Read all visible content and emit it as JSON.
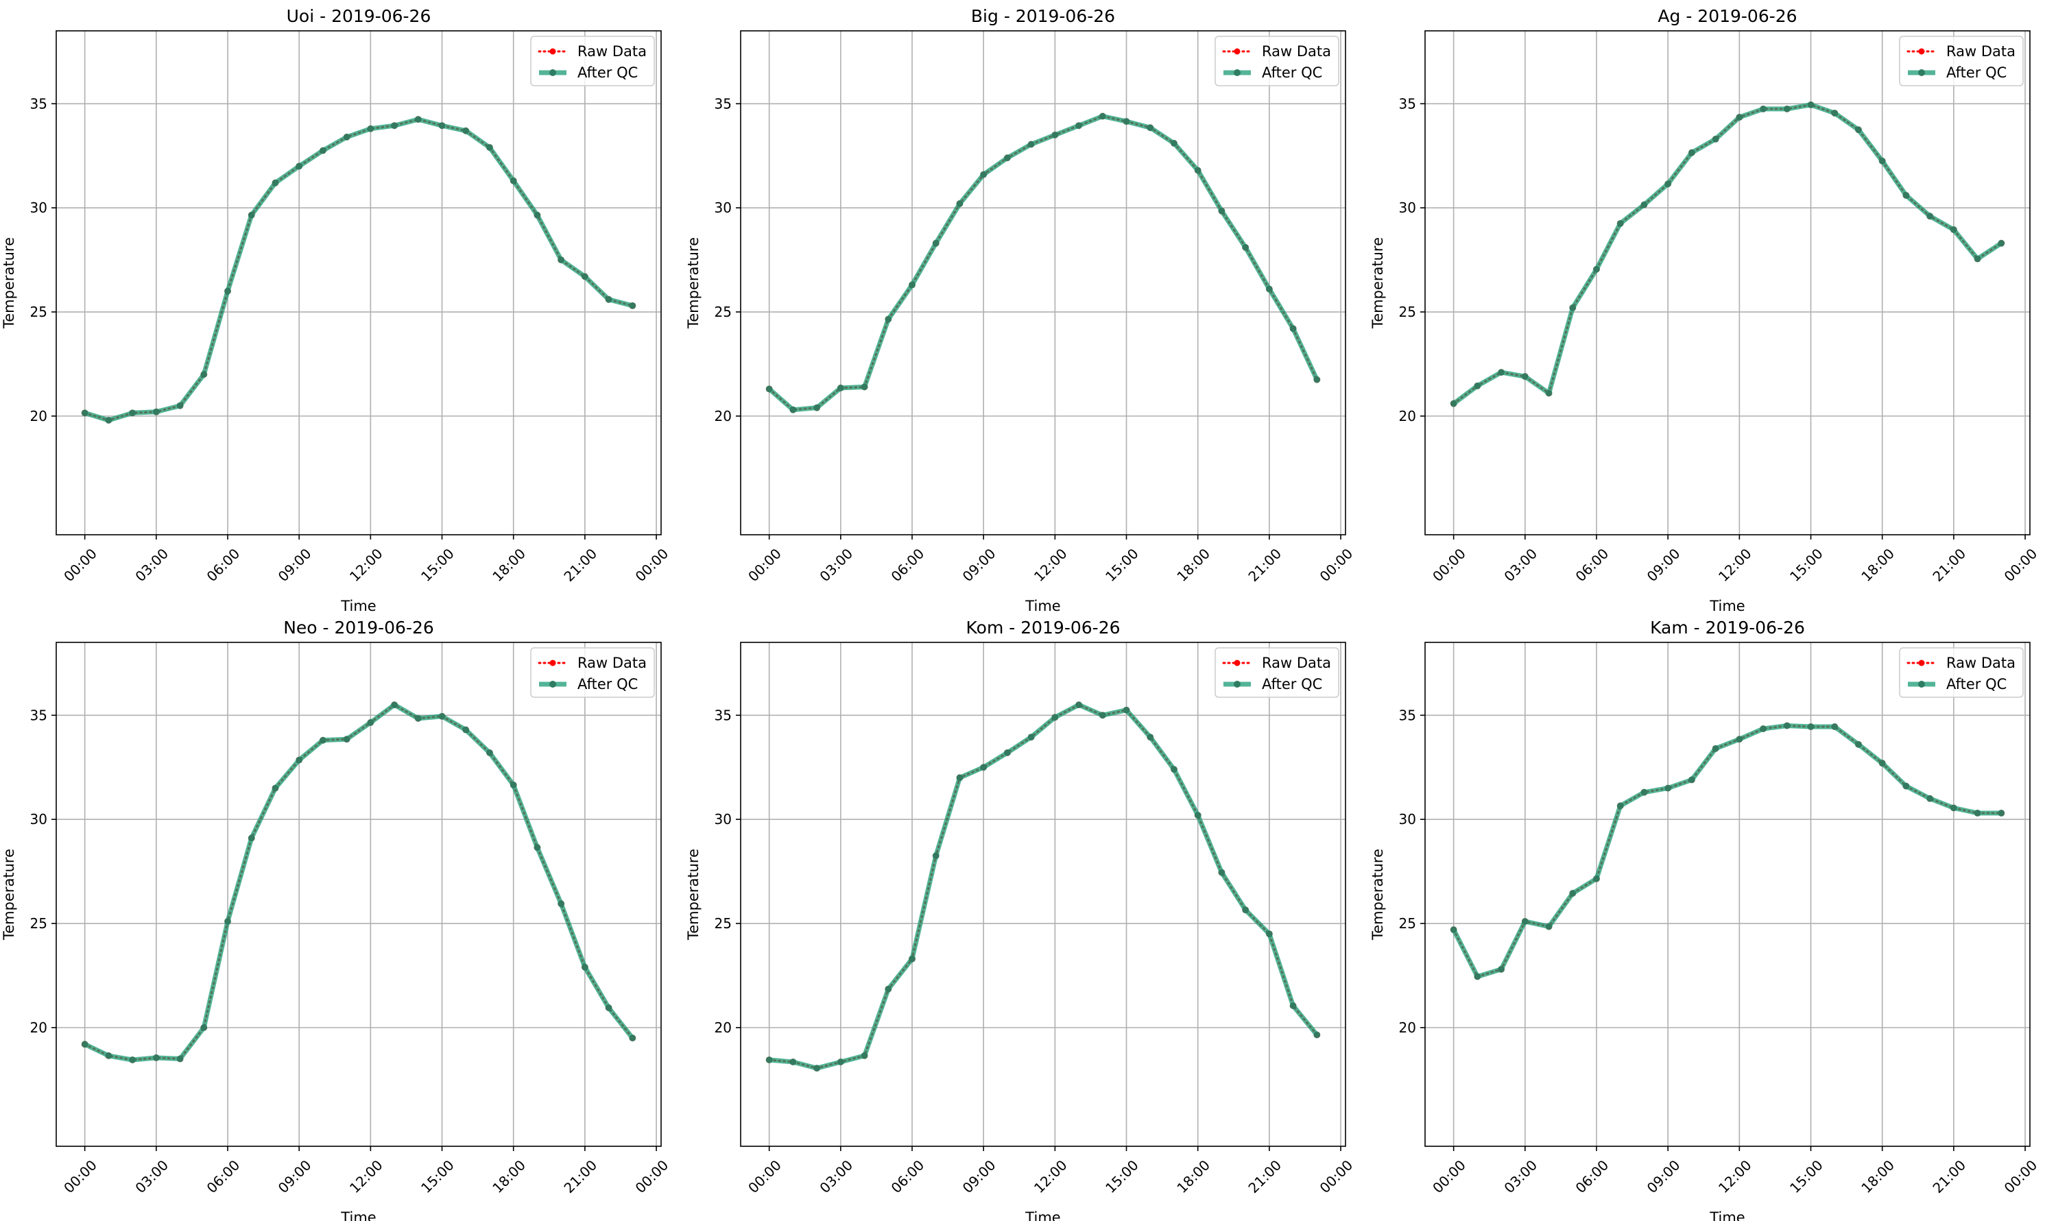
{
  "chart_data": [
    {
      "type": "line",
      "title": "Uoi - 2019-06-26",
      "xlabel": "Time",
      "ylabel": "Temperature",
      "x": [
        "00:00",
        "01:00",
        "02:00",
        "03:00",
        "04:00",
        "05:00",
        "06:00",
        "07:00",
        "08:00",
        "09:00",
        "10:00",
        "11:00",
        "12:00",
        "13:00",
        "14:00",
        "15:00",
        "16:00",
        "17:00",
        "18:00",
        "19:00",
        "20:00",
        "21:00",
        "22:00",
        "23:00"
      ],
      "xticks": [
        "00:00",
        "03:00",
        "06:00",
        "09:00",
        "12:00",
        "15:00",
        "18:00",
        "21:00",
        "00:00"
      ],
      "yticks": [
        20,
        25,
        30,
        35
      ],
      "ylim": [
        14.3,
        38.5
      ],
      "xlim_hours": [
        -1.2,
        24.2
      ],
      "grid": true,
      "legend_position": "top-right",
      "series": [
        {
          "name": "Raw Data",
          "color": "#ff0000",
          "style": "dotted-markers",
          "values": [
            20.15,
            19.8,
            20.15,
            20.2,
            20.5,
            22.0,
            26.0,
            29.65,
            31.2,
            32.0,
            32.75,
            33.4,
            33.8,
            33.95,
            34.25,
            33.95,
            33.7,
            32.9,
            31.3,
            29.65,
            27.5,
            26.7,
            25.6,
            25.3
          ]
        },
        {
          "name": "After QC",
          "color": "#1a9b74",
          "style": "solid-markers",
          "values": [
            20.15,
            19.8,
            20.15,
            20.2,
            20.5,
            22.0,
            26.0,
            29.65,
            31.2,
            32.0,
            32.75,
            33.4,
            33.8,
            33.95,
            34.25,
            33.95,
            33.7,
            32.9,
            31.3,
            29.65,
            27.5,
            26.7,
            25.6,
            25.3
          ]
        }
      ]
    },
    {
      "type": "line",
      "title": "Big - 2019-06-26",
      "xlabel": "Time",
      "ylabel": "Temperature",
      "x": [
        "00:00",
        "01:00",
        "02:00",
        "03:00",
        "04:00",
        "05:00",
        "06:00",
        "07:00",
        "08:00",
        "09:00",
        "10:00",
        "11:00",
        "12:00",
        "13:00",
        "14:00",
        "15:00",
        "16:00",
        "17:00",
        "18:00",
        "19:00",
        "20:00",
        "21:00",
        "22:00",
        "23:00"
      ],
      "xticks": [
        "00:00",
        "03:00",
        "06:00",
        "09:00",
        "12:00",
        "15:00",
        "18:00",
        "21:00",
        "00:00"
      ],
      "yticks": [
        20,
        25,
        30,
        35
      ],
      "ylim": [
        14.3,
        38.5
      ],
      "xlim_hours": [
        -1.2,
        24.2
      ],
      "grid": true,
      "legend_position": "top-right",
      "series": [
        {
          "name": "Raw Data",
          "color": "#ff0000",
          "style": "dotted-markers",
          "values": [
            21.3,
            20.3,
            20.4,
            21.35,
            21.4,
            24.65,
            26.3,
            28.3,
            30.2,
            31.6,
            32.4,
            33.05,
            33.5,
            33.95,
            34.4,
            34.15,
            33.85,
            33.1,
            31.8,
            29.85,
            28.1,
            26.1,
            24.2,
            21.75
          ]
        },
        {
          "name": "After QC",
          "color": "#1a9b74",
          "style": "solid-markers",
          "values": [
            21.3,
            20.3,
            20.4,
            21.35,
            21.4,
            24.65,
            26.3,
            28.3,
            30.2,
            31.6,
            32.4,
            33.05,
            33.5,
            33.95,
            34.4,
            34.15,
            33.85,
            33.1,
            31.8,
            29.85,
            28.1,
            26.1,
            24.2,
            21.75
          ]
        }
      ]
    },
    {
      "type": "line",
      "title": "Ag - 2019-06-26",
      "xlabel": "Time",
      "ylabel": "Temperature",
      "x": [
        "00:00",
        "01:00",
        "02:00",
        "03:00",
        "04:00",
        "05:00",
        "06:00",
        "07:00",
        "08:00",
        "09:00",
        "10:00",
        "11:00",
        "12:00",
        "13:00",
        "14:00",
        "15:00",
        "16:00",
        "17:00",
        "18:00",
        "19:00",
        "20:00",
        "21:00",
        "22:00",
        "23:00"
      ],
      "xticks": [
        "00:00",
        "03:00",
        "06:00",
        "09:00",
        "12:00",
        "15:00",
        "18:00",
        "21:00",
        "00:00"
      ],
      "yticks": [
        20,
        25,
        30,
        35
      ],
      "ylim": [
        14.3,
        38.5
      ],
      "xlim_hours": [
        -1.2,
        24.2
      ],
      "grid": true,
      "legend_position": "top-right",
      "series": [
        {
          "name": "Raw Data",
          "color": "#ff0000",
          "style": "dotted-markers",
          "values": [
            20.6,
            21.45,
            22.1,
            21.9,
            21.1,
            25.2,
            27.05,
            29.25,
            30.15,
            31.15,
            32.65,
            33.3,
            34.35,
            34.75,
            34.75,
            34.95,
            34.55,
            33.75,
            32.25,
            30.6,
            29.6,
            28.95,
            27.55,
            28.3
          ]
        },
        {
          "name": "After QC",
          "color": "#1a9b74",
          "style": "solid-markers",
          "values": [
            20.6,
            21.45,
            22.1,
            21.9,
            21.1,
            25.2,
            27.05,
            29.25,
            30.15,
            31.15,
            32.65,
            33.3,
            34.35,
            34.75,
            34.75,
            34.95,
            34.55,
            33.75,
            32.25,
            30.6,
            29.6,
            28.95,
            27.55,
            28.3
          ]
        }
      ]
    },
    {
      "type": "line",
      "title": "Neo - 2019-06-26",
      "xlabel": "Time",
      "ylabel": "Temperature",
      "x": [
        "00:00",
        "01:00",
        "02:00",
        "03:00",
        "04:00",
        "05:00",
        "06:00",
        "07:00",
        "08:00",
        "09:00",
        "10:00",
        "11:00",
        "12:00",
        "13:00",
        "14:00",
        "15:00",
        "16:00",
        "17:00",
        "18:00",
        "19:00",
        "20:00",
        "21:00",
        "22:00",
        "23:00"
      ],
      "xticks": [
        "00:00",
        "03:00",
        "06:00",
        "09:00",
        "12:00",
        "15:00",
        "18:00",
        "21:00",
        "00:00"
      ],
      "yticks": [
        20,
        25,
        30,
        35
      ],
      "ylim": [
        14.3,
        38.5
      ],
      "xlim_hours": [
        -1.2,
        24.2
      ],
      "grid": true,
      "legend_position": "top-right",
      "series": [
        {
          "name": "Raw Data",
          "color": "#ff0000",
          "style": "dotted-markers",
          "values": [
            19.2,
            18.65,
            18.45,
            18.55,
            18.5,
            20.0,
            25.1,
            29.1,
            31.5,
            32.85,
            33.8,
            33.85,
            34.65,
            35.5,
            34.85,
            34.95,
            34.3,
            33.2,
            31.65,
            28.65,
            25.95,
            22.9,
            20.95,
            19.5
          ]
        },
        {
          "name": "After QC",
          "color": "#1a9b74",
          "style": "solid-markers",
          "values": [
            19.2,
            18.65,
            18.45,
            18.55,
            18.5,
            20.0,
            25.1,
            29.1,
            31.5,
            32.85,
            33.8,
            33.85,
            34.65,
            35.5,
            34.85,
            34.95,
            34.3,
            33.2,
            31.65,
            28.65,
            25.95,
            22.9,
            20.95,
            19.5
          ]
        }
      ]
    },
    {
      "type": "line",
      "title": "Kom - 2019-06-26",
      "xlabel": "Time",
      "ylabel": "Temperature",
      "x": [
        "00:00",
        "01:00",
        "02:00",
        "03:00",
        "04:00",
        "05:00",
        "06:00",
        "07:00",
        "08:00",
        "09:00",
        "10:00",
        "11:00",
        "12:00",
        "13:00",
        "14:00",
        "15:00",
        "16:00",
        "17:00",
        "18:00",
        "19:00",
        "20:00",
        "21:00",
        "22:00",
        "23:00"
      ],
      "xticks": [
        "00:00",
        "03:00",
        "06:00",
        "09:00",
        "12:00",
        "15:00",
        "18:00",
        "21:00",
        "00:00"
      ],
      "yticks": [
        20,
        25,
        30,
        35
      ],
      "ylim": [
        14.3,
        38.5
      ],
      "xlim_hours": [
        -1.2,
        24.2
      ],
      "grid": true,
      "legend_position": "top-right",
      "series": [
        {
          "name": "Raw Data",
          "color": "#ff0000",
          "style": "dotted-markers",
          "values": [
            18.45,
            18.35,
            18.05,
            18.35,
            18.65,
            21.85,
            23.3,
            28.25,
            32.0,
            32.5,
            33.2,
            33.95,
            34.9,
            35.5,
            35.0,
            35.25,
            33.95,
            32.4,
            30.2,
            27.45,
            25.65,
            24.5,
            21.05,
            19.65
          ]
        },
        {
          "name": "After QC",
          "color": "#1a9b74",
          "style": "solid-markers",
          "values": [
            18.45,
            18.35,
            18.05,
            18.35,
            18.65,
            21.85,
            23.3,
            28.25,
            32.0,
            32.5,
            33.2,
            33.95,
            34.9,
            35.5,
            35.0,
            35.25,
            33.95,
            32.4,
            30.2,
            27.45,
            25.65,
            24.5,
            21.05,
            19.65
          ]
        }
      ]
    },
    {
      "type": "line",
      "title": "Kam - 2019-06-26",
      "xlabel": "Time",
      "ylabel": "Temperature",
      "x": [
        "00:00",
        "01:00",
        "02:00",
        "03:00",
        "04:00",
        "05:00",
        "06:00",
        "07:00",
        "08:00",
        "09:00",
        "10:00",
        "11:00",
        "12:00",
        "13:00",
        "14:00",
        "15:00",
        "16:00",
        "17:00",
        "18:00",
        "19:00",
        "20:00",
        "21:00",
        "22:00",
        "23:00"
      ],
      "xticks": [
        "00:00",
        "03:00",
        "06:00",
        "09:00",
        "12:00",
        "15:00",
        "18:00",
        "21:00",
        "00:00"
      ],
      "yticks": [
        20,
        25,
        30,
        35
      ],
      "ylim": [
        14.3,
        38.5
      ],
      "xlim_hours": [
        -1.2,
        24.2
      ],
      "grid": true,
      "legend_position": "top-right",
      "series": [
        {
          "name": "Raw Data",
          "color": "#ff0000",
          "style": "dotted-markers",
          "values": [
            24.7,
            22.45,
            22.8,
            25.1,
            24.85,
            26.45,
            27.15,
            30.65,
            31.3,
            31.5,
            31.9,
            33.4,
            33.85,
            34.35,
            34.5,
            34.45,
            34.45,
            33.6,
            32.7,
            31.6,
            31.0,
            30.55,
            30.3,
            30.3
          ]
        },
        {
          "name": "After QC",
          "color": "#1a9b74",
          "style": "solid-markers",
          "values": [
            24.7,
            22.45,
            22.8,
            25.1,
            24.85,
            26.45,
            27.15,
            30.65,
            31.3,
            31.5,
            31.9,
            33.4,
            33.85,
            34.35,
            34.5,
            34.45,
            34.45,
            33.6,
            32.7,
            31.6,
            31.0,
            30.55,
            30.3,
            30.3
          ]
        }
      ]
    }
  ]
}
